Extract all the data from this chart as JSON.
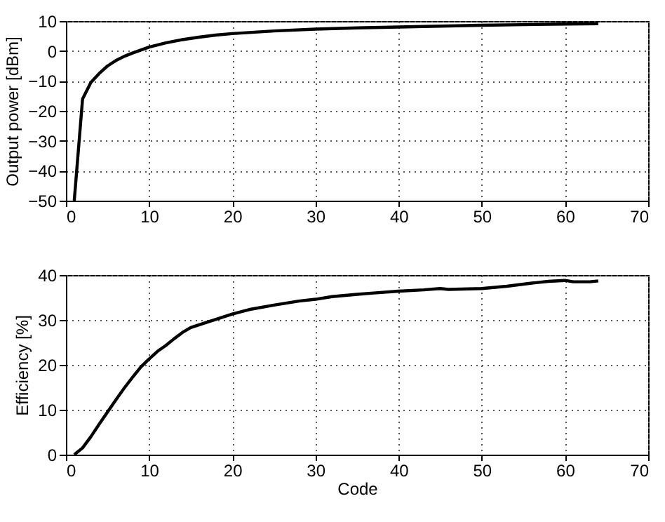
{
  "chart_data": [
    {
      "type": "line",
      "ylabel": "Output power [dBm]",
      "x": [
        1,
        2,
        3,
        4,
        5,
        6,
        7,
        8,
        9,
        10,
        12,
        14,
        16,
        18,
        20,
        25,
        30,
        35,
        40,
        45,
        50,
        55,
        60,
        64
      ],
      "series": [
        {
          "color": "#000000",
          "values": [
            -50,
            -16,
            -10.5,
            -7.5,
            -5,
            -3.2,
            -1.8,
            -0.7,
            0.3,
            1.3,
            2.7,
            3.8,
            4.6,
            5.3,
            5.8,
            6.7,
            7.3,
            7.7,
            8.0,
            8.3,
            8.6,
            8.8,
            9.0,
            9.1
          ]
        }
      ],
      "xlim": [
        0,
        70
      ],
      "xticks": [
        0,
        10,
        20,
        30,
        40,
        50,
        60,
        70
      ],
      "ylim": [
        -50,
        10
      ],
      "yticks": [
        -50,
        -40,
        -30,
        -20,
        -10,
        0,
        10
      ],
      "grid": true,
      "line_style": "solid"
    },
    {
      "type": "line",
      "xlabel": "Code",
      "ylabel": "Efficiency [%]",
      "x": [
        1,
        2,
        3,
        4,
        5,
        6,
        7,
        8,
        9,
        10,
        11,
        12,
        13,
        14,
        15,
        17,
        20,
        22,
        25,
        28,
        30,
        32,
        35,
        37,
        40,
        43,
        45,
        46,
        50,
        53,
        56,
        58,
        60,
        61,
        63,
        64
      ],
      "series": [
        {
          "color": "#000000",
          "values": [
            0,
            1.5,
            4,
            6.8,
            9.5,
            12.2,
            14.8,
            17.2,
            19.5,
            21.3,
            23,
            24.3,
            25.8,
            27.2,
            28.3,
            29.5,
            31.3,
            32.3,
            33.3,
            34.2,
            34.6,
            35.2,
            35.7,
            36,
            36.4,
            36.7,
            37,
            36.8,
            37,
            37.5,
            38.2,
            38.6,
            38.8,
            38.5,
            38.5,
            38.7
          ]
        }
      ],
      "xlim": [
        0,
        70
      ],
      "xticks": [
        0,
        10,
        20,
        30,
        40,
        50,
        60,
        70
      ],
      "ylim": [
        0,
        40
      ],
      "yticks": [
        0,
        10,
        20,
        30,
        40
      ],
      "grid": true,
      "line_style": "solid"
    }
  ]
}
